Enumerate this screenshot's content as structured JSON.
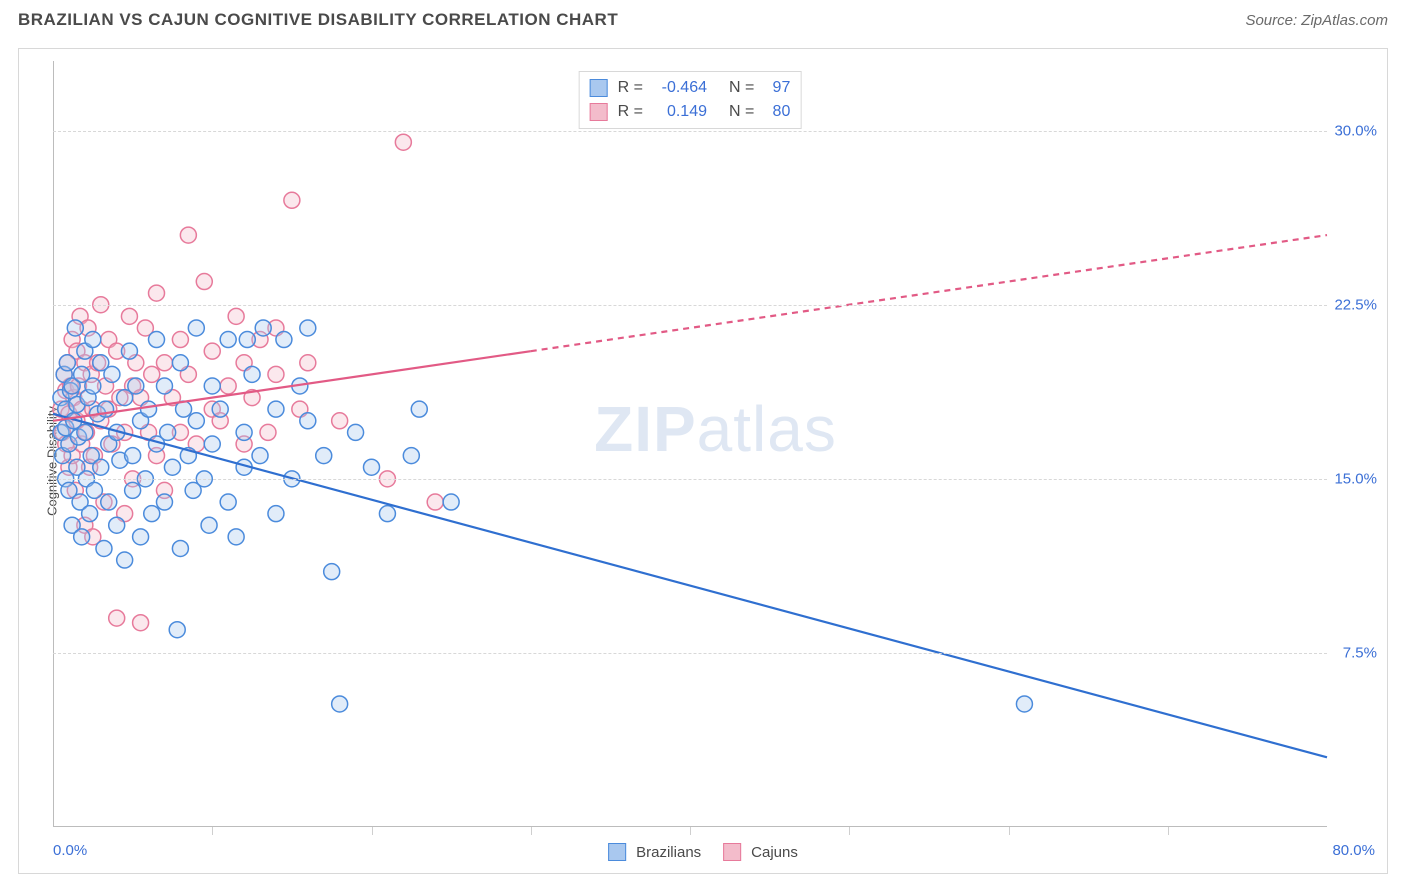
{
  "header": {
    "title": "BRAZILIAN VS CAJUN COGNITIVE DISABILITY CORRELATION CHART",
    "source": "Source: ZipAtlas.com"
  },
  "watermark": {
    "bold": "ZIP",
    "rest": "atlas"
  },
  "chart": {
    "type": "scatter",
    "y_axis_title": "Cognitive Disability",
    "xlim": [
      0,
      80
    ],
    "ylim": [
      0,
      33
    ],
    "x_label_start": "0.0%",
    "x_label_end": "80.0%",
    "x_ticks": [
      10,
      20,
      30,
      40,
      50,
      60,
      70
    ],
    "y_ticks": [
      {
        "v": 7.5,
        "label": "7.5%"
      },
      {
        "v": 15.0,
        "label": "15.0%"
      },
      {
        "v": 22.5,
        "label": "22.5%"
      },
      {
        "v": 30.0,
        "label": "30.0%"
      }
    ],
    "grid_color": "#d8d8d8",
    "axis_color": "#bcbcbc",
    "background_color": "#ffffff",
    "marker_radius": 8,
    "marker_fill_opacity": 0.35,
    "marker_stroke_width": 1.5,
    "trend_line_width": 2.2,
    "series": {
      "brazilians": {
        "label": "Brazilians",
        "fill": "#a9c8ef",
        "stroke": "#4b8bdc",
        "line_color": "#2f6fd0",
        "R": "-0.464",
        "N": "97",
        "trend": {
          "x1": 0,
          "y1": 17.8,
          "x2": 80,
          "y2": 3.0,
          "dash_from_x": 80
        },
        "points": [
          [
            0.5,
            17.0
          ],
          [
            0.5,
            18.5
          ],
          [
            0.6,
            16.0
          ],
          [
            0.7,
            19.5
          ],
          [
            0.8,
            15.0
          ],
          [
            0.8,
            18.0
          ],
          [
            0.8,
            17.2
          ],
          [
            0.9,
            20.0
          ],
          [
            1.0,
            16.5
          ],
          [
            1.0,
            14.5
          ],
          [
            1.1,
            18.8
          ],
          [
            1.2,
            13.0
          ],
          [
            1.2,
            19.0
          ],
          [
            1.3,
            17.5
          ],
          [
            1.4,
            21.5
          ],
          [
            1.5,
            15.5
          ],
          [
            1.5,
            18.2
          ],
          [
            1.6,
            16.8
          ],
          [
            1.7,
            14.0
          ],
          [
            1.8,
            19.5
          ],
          [
            1.8,
            12.5
          ],
          [
            2.0,
            17.0
          ],
          [
            2.0,
            20.5
          ],
          [
            2.1,
            15.0
          ],
          [
            2.2,
            18.5
          ],
          [
            2.3,
            13.5
          ],
          [
            2.4,
            16.0
          ],
          [
            2.5,
            19.0
          ],
          [
            2.5,
            21.0
          ],
          [
            2.6,
            14.5
          ],
          [
            2.8,
            17.8
          ],
          [
            3.0,
            15.5
          ],
          [
            3.0,
            20.0
          ],
          [
            3.2,
            12.0
          ],
          [
            3.3,
            18.0
          ],
          [
            3.5,
            16.5
          ],
          [
            3.5,
            14.0
          ],
          [
            3.7,
            19.5
          ],
          [
            4.0,
            17.0
          ],
          [
            4.0,
            13.0
          ],
          [
            4.2,
            15.8
          ],
          [
            4.5,
            18.5
          ],
          [
            4.5,
            11.5
          ],
          [
            4.8,
            20.5
          ],
          [
            5.0,
            16.0
          ],
          [
            5.0,
            14.5
          ],
          [
            5.2,
            19.0
          ],
          [
            5.5,
            17.5
          ],
          [
            5.5,
            12.5
          ],
          [
            5.8,
            15.0
          ],
          [
            6.0,
            18.0
          ],
          [
            6.2,
            13.5
          ],
          [
            6.5,
            16.5
          ],
          [
            6.5,
            21.0
          ],
          [
            7.0,
            14.0
          ],
          [
            7.0,
            19.0
          ],
          [
            7.2,
            17.0
          ],
          [
            7.5,
            15.5
          ],
          [
            7.8,
            8.5
          ],
          [
            8.0,
            20.0
          ],
          [
            8.0,
            12.0
          ],
          [
            8.2,
            18.0
          ],
          [
            8.5,
            16.0
          ],
          [
            8.8,
            14.5
          ],
          [
            9.0,
            21.5
          ],
          [
            9.0,
            17.5
          ],
          [
            9.5,
            15.0
          ],
          [
            9.8,
            13.0
          ],
          [
            10.0,
            19.0
          ],
          [
            10.0,
            16.5
          ],
          [
            10.5,
            18.0
          ],
          [
            11.0,
            14.0
          ],
          [
            11.0,
            21.0
          ],
          [
            11.5,
            12.5
          ],
          [
            12.0,
            17.0
          ],
          [
            12.0,
            15.5
          ],
          [
            12.2,
            21.0
          ],
          [
            12.5,
            19.5
          ],
          [
            13.0,
            16.0
          ],
          [
            13.2,
            21.5
          ],
          [
            14.0,
            18.0
          ],
          [
            14.0,
            13.5
          ],
          [
            14.5,
            21.0
          ],
          [
            15.0,
            15.0
          ],
          [
            15.5,
            19.0
          ],
          [
            16.0,
            17.5
          ],
          [
            16.0,
            21.5
          ],
          [
            17.0,
            16.0
          ],
          [
            17.5,
            11.0
          ],
          [
            18.0,
            5.3
          ],
          [
            19.0,
            17.0
          ],
          [
            20.0,
            15.5
          ],
          [
            21.0,
            13.5
          ],
          [
            22.5,
            16.0
          ],
          [
            23.0,
            18.0
          ],
          [
            25.0,
            14.0
          ],
          [
            61.0,
            5.3
          ]
        ]
      },
      "cajuns": {
        "label": "Cajuns",
        "fill": "#f3bccb",
        "stroke": "#e77a9b",
        "line_color": "#e25a85",
        "R": "0.149",
        "N": "80",
        "trend": {
          "x1": 0,
          "y1": 17.5,
          "x2": 80,
          "y2": 25.5,
          "dash_from_x": 30
        },
        "points": [
          [
            0.5,
            18.0
          ],
          [
            0.6,
            17.0
          ],
          [
            0.7,
            19.5
          ],
          [
            0.8,
            16.5
          ],
          [
            0.8,
            18.8
          ],
          [
            0.9,
            20.0
          ],
          [
            1.0,
            15.5
          ],
          [
            1.0,
            17.8
          ],
          [
            1.1,
            19.0
          ],
          [
            1.2,
            21.0
          ],
          [
            1.2,
            16.0
          ],
          [
            1.3,
            18.5
          ],
          [
            1.4,
            14.5
          ],
          [
            1.5,
            20.5
          ],
          [
            1.5,
            17.5
          ],
          [
            1.6,
            19.0
          ],
          [
            1.7,
            22.0
          ],
          [
            1.8,
            16.5
          ],
          [
            1.8,
            18.0
          ],
          [
            2.0,
            13.0
          ],
          [
            2.0,
            20.0
          ],
          [
            2.1,
            17.0
          ],
          [
            2.2,
            21.5
          ],
          [
            2.3,
            15.5
          ],
          [
            2.4,
            19.5
          ],
          [
            2.5,
            18.0
          ],
          [
            2.5,
            12.5
          ],
          [
            2.6,
            16.0
          ],
          [
            2.8,
            20.0
          ],
          [
            3.0,
            17.5
          ],
          [
            3.0,
            22.5
          ],
          [
            3.2,
            14.0
          ],
          [
            3.3,
            19.0
          ],
          [
            3.5,
            18.0
          ],
          [
            3.5,
            21.0
          ],
          [
            3.7,
            16.5
          ],
          [
            4.0,
            20.5
          ],
          [
            4.0,
            9.0
          ],
          [
            4.2,
            18.5
          ],
          [
            4.5,
            13.5
          ],
          [
            4.5,
            17.0
          ],
          [
            4.8,
            22.0
          ],
          [
            5.0,
            19.0
          ],
          [
            5.0,
            15.0
          ],
          [
            5.2,
            20.0
          ],
          [
            5.5,
            18.5
          ],
          [
            5.5,
            8.8
          ],
          [
            5.8,
            21.5
          ],
          [
            6.0,
            17.0
          ],
          [
            6.2,
            19.5
          ],
          [
            6.5,
            23.0
          ],
          [
            6.5,
            16.0
          ],
          [
            7.0,
            20.0
          ],
          [
            7.0,
            14.5
          ],
          [
            7.5,
            18.5
          ],
          [
            8.0,
            21.0
          ],
          [
            8.0,
            17.0
          ],
          [
            8.5,
            19.5
          ],
          [
            8.5,
            25.5
          ],
          [
            9.0,
            16.5
          ],
          [
            9.5,
            23.5
          ],
          [
            10.0,
            18.0
          ],
          [
            10.0,
            20.5
          ],
          [
            10.5,
            17.5
          ],
          [
            11.0,
            19.0
          ],
          [
            11.5,
            22.0
          ],
          [
            12.0,
            16.5
          ],
          [
            12.0,
            20.0
          ],
          [
            12.5,
            18.5
          ],
          [
            13.0,
            21.0
          ],
          [
            13.5,
            17.0
          ],
          [
            14.0,
            19.5
          ],
          [
            14.0,
            21.5
          ],
          [
            15.0,
            27.0
          ],
          [
            15.5,
            18.0
          ],
          [
            16.0,
            20.0
          ],
          [
            18.0,
            17.5
          ],
          [
            21.0,
            15.0
          ],
          [
            22.0,
            29.5
          ],
          [
            24.0,
            14.0
          ]
        ]
      }
    }
  },
  "stats_box": {
    "rows": [
      {
        "series": "brazilians",
        "R_label": "R =",
        "N_label": "N ="
      },
      {
        "series": "cajuns",
        "R_label": "R =",
        "N_label": "N ="
      }
    ]
  },
  "legend": {
    "items": [
      {
        "series": "brazilians"
      },
      {
        "series": "cajuns"
      }
    ]
  }
}
